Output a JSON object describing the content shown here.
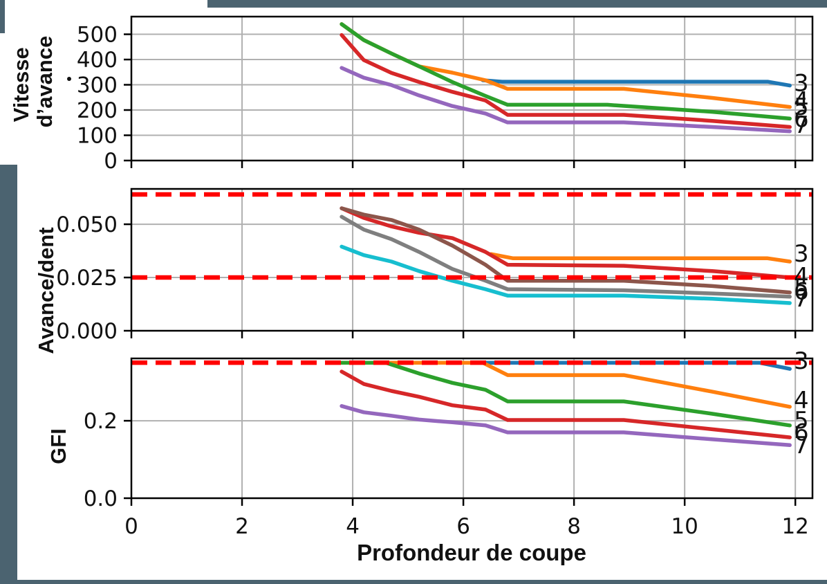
{
  "styles": {
    "frame_color": "#4b6370",
    "grid_color": "#b0b0b0",
    "dash_color": "#ff0000",
    "spine_color": "#000000"
  },
  "x_axis": {
    "label": "Profondeur de coupe",
    "ticks": [
      0,
      2,
      4,
      6,
      8,
      10,
      12
    ],
    "tick_labels": [
      "0",
      "2",
      "4",
      "6",
      "8",
      "10",
      "12"
    ],
    "xlim": [
      0,
      12.31
    ]
  },
  "chart_data": [
    {
      "type": "line",
      "id": "vitesse-davance",
      "title": "",
      "xlabel": "",
      "ylabel": "Vitesse d’avance",
      "ylabel_lines": [
        "Vitesse",
        "d’avance"
      ],
      "ylim": [
        0,
        570
      ],
      "yticks": [
        0,
        100,
        200,
        300,
        400,
        500
      ],
      "ytick_labels": [
        "0",
        "100",
        "200",
        "300",
        "400",
        "500"
      ],
      "xticks": [
        0,
        2,
        4,
        6,
        8,
        10,
        12
      ],
      "grid": true,
      "legend": "line-end labels = number of teeth",
      "dashed_limits": [],
      "series": [
        {
          "name": "3",
          "color": "#1f77b4",
          "points": [
            [
              6.35,
              318
            ],
            [
              6.7,
              312
            ],
            [
              11.5,
              312
            ],
            [
              11.9,
              297
            ]
          ]
        },
        {
          "name": "4",
          "color": "#ff7f0e",
          "points": [
            [
              3.8,
              540
            ],
            [
              4.2,
              477
            ],
            [
              4.7,
              424
            ],
            [
              5.2,
              373
            ],
            [
              5.8,
              348
            ],
            [
              6.4,
              318
            ],
            [
              6.8,
              284
            ],
            [
              8.9,
              284
            ],
            [
              10.5,
              248
            ],
            [
              11.9,
              212
            ]
          ]
        },
        {
          "name": "5",
          "color": "#2ca02c",
          "points": [
            [
              3.8,
              540
            ],
            [
              4.2,
              477
            ],
            [
              4.7,
              424
            ],
            [
              5.2,
              373
            ],
            [
              5.8,
              311
            ],
            [
              6.4,
              256
            ],
            [
              6.8,
              221
            ],
            [
              8.6,
              221
            ],
            [
              10.5,
              193
            ],
            [
              11.9,
              166
            ]
          ]
        },
        {
          "name": "6",
          "color": "#d62728",
          "points": [
            [
              3.8,
              497
            ],
            [
              4.2,
              398
            ],
            [
              4.7,
              347
            ],
            [
              5.2,
              311
            ],
            [
              5.8,
              272
            ],
            [
              6.4,
              238
            ],
            [
              6.8,
              181
            ],
            [
              8.9,
              181
            ],
            [
              10.5,
              157
            ],
            [
              11.9,
              133
            ]
          ]
        },
        {
          "name": "7",
          "color": "#9467bd",
          "points": [
            [
              3.8,
              367
            ],
            [
              4.2,
              328
            ],
            [
              4.7,
              299
            ],
            [
              5.2,
              258
            ],
            [
              5.8,
              216
            ],
            [
              6.4,
              186
            ],
            [
              6.8,
              151
            ],
            [
              8.9,
              151
            ],
            [
              10.5,
              133
            ],
            [
              11.9,
              116
            ]
          ]
        }
      ],
      "end_labels": [
        {
          "text": "3",
          "value": 308
        },
        {
          "text": "4",
          "value": 238
        },
        {
          "text": "5",
          "value": 214
        },
        {
          "text": "6",
          "value": 166
        },
        {
          "text": "7",
          "value": 142
        }
      ]
    },
    {
      "type": "line",
      "id": "avance-dent",
      "title": "",
      "xlabel": "",
      "ylabel": "Avance/dent",
      "ylim": [
        0,
        0.0666
      ],
      "yticks": [
        0,
        0.025,
        0.05
      ],
      "ytick_labels": [
        "0.000",
        "0.025",
        "0.050"
      ],
      "xticks": [
        0,
        2,
        4,
        6,
        8,
        10,
        12
      ],
      "grid": true,
      "dashed_limits": [
        0.064,
        0.025
      ],
      "series": [
        {
          "name": "3",
          "color": "#ff7f0e",
          "points": [
            [
              6.5,
              0.036
            ],
            [
              6.9,
              0.034
            ],
            [
              11.5,
              0.034
            ],
            [
              11.9,
              0.0325
            ]
          ]
        },
        {
          "name": "4",
          "color": "#d62728",
          "points": [
            [
              3.8,
              0.0575
            ],
            [
              4.2,
              0.053
            ],
            [
              4.7,
              0.049
            ],
            [
              5.2,
              0.046
            ],
            [
              5.8,
              0.0435
            ],
            [
              6.4,
              0.037
            ],
            [
              6.8,
              0.031
            ],
            [
              8.9,
              0.0305
            ],
            [
              10.5,
              0.028
            ],
            [
              11.9,
              0.025
            ]
          ]
        },
        {
          "name": "5",
          "color": "#8c564b",
          "points": [
            [
              3.8,
              0.0575
            ],
            [
              4.2,
              0.0545
            ],
            [
              4.7,
              0.052
            ],
            [
              5.2,
              0.0475
            ],
            [
              5.8,
              0.04
            ],
            [
              6.4,
              0.031
            ],
            [
              6.8,
              0.0235
            ],
            [
              8.9,
              0.0235
            ],
            [
              10.5,
              0.021
            ],
            [
              11.9,
              0.018
            ]
          ]
        },
        {
          "name": "6",
          "color": "#7f7f7f",
          "points": [
            [
              3.8,
              0.0535
            ],
            [
              4.2,
              0.0475
            ],
            [
              4.7,
              0.043
            ],
            [
              5.2,
              0.037
            ],
            [
              5.8,
              0.029
            ],
            [
              6.4,
              0.0235
            ],
            [
              6.8,
              0.0195
            ],
            [
              8.9,
              0.019
            ],
            [
              10.5,
              0.0175
            ],
            [
              11.9,
              0.016
            ]
          ]
        },
        {
          "name": "7",
          "color": "#17becf",
          "points": [
            [
              3.8,
              0.0395
            ],
            [
              4.2,
              0.0355
            ],
            [
              4.7,
              0.0325
            ],
            [
              5.2,
              0.028
            ],
            [
              5.8,
              0.0235
            ],
            [
              6.4,
              0.0195
            ],
            [
              6.8,
              0.0165
            ],
            [
              8.9,
              0.0165
            ],
            [
              10.5,
              0.015
            ],
            [
              11.9,
              0.013
            ]
          ]
        }
      ],
      "end_labels": [
        {
          "text": "3",
          "value": 0.0364
        },
        {
          "text": "4",
          "value": 0.0257
        },
        {
          "text": "5",
          "value": 0.0205
        },
        {
          "text": "6",
          "value": 0.0186
        },
        {
          "text": "7",
          "value": 0.0152
        }
      ]
    },
    {
      "type": "line",
      "id": "gfi",
      "title": "",
      "xlabel": "Profondeur de coupe",
      "ylabel": "GFI",
      "ylim": [
        0,
        0.361
      ],
      "yticks": [
        0,
        0.2
      ],
      "ytick_labels": [
        "0.0",
        "0.2"
      ],
      "xticks": [
        0,
        2,
        4,
        6,
        8,
        10,
        12
      ],
      "grid": true,
      "dashed_limits": [
        0.35
      ],
      "series": [
        {
          "name": "3",
          "color": "#1f77b4",
          "points": [
            [
              3.8,
              0.35
            ],
            [
              11.35,
              0.35
            ],
            [
              11.9,
              0.334
            ]
          ]
        },
        {
          "name": "4",
          "color": "#ff7f0e",
          "points": [
            [
              3.8,
              0.35
            ],
            [
              6.35,
              0.35
            ],
            [
              6.8,
              0.318
            ],
            [
              8.9,
              0.318
            ],
            [
              10.5,
              0.275
            ],
            [
              11.9,
              0.236
            ]
          ]
        },
        {
          "name": "5",
          "color": "#2ca02c",
          "points": [
            [
              3.8,
              0.35
            ],
            [
              4.6,
              0.35
            ],
            [
              5.2,
              0.322
            ],
            [
              5.8,
              0.298
            ],
            [
              6.4,
              0.28
            ],
            [
              6.8,
              0.25
            ],
            [
              8.9,
              0.25
            ],
            [
              10.5,
              0.218
            ],
            [
              11.9,
              0.188
            ]
          ]
        },
        {
          "name": "6",
          "color": "#d62728",
          "points": [
            [
              3.8,
              0.327
            ],
            [
              4.2,
              0.295
            ],
            [
              4.7,
              0.277
            ],
            [
              5.2,
              0.262
            ],
            [
              5.8,
              0.24
            ],
            [
              6.4,
              0.229
            ],
            [
              6.8,
              0.202
            ],
            [
              8.9,
              0.202
            ],
            [
              10.5,
              0.178
            ],
            [
              11.9,
              0.157
            ]
          ]
        },
        {
          "name": "7",
          "color": "#9467bd",
          "points": [
            [
              3.8,
              0.238
            ],
            [
              4.2,
              0.222
            ],
            [
              4.7,
              0.213
            ],
            [
              5.2,
              0.203
            ],
            [
              5.8,
              0.196
            ],
            [
              6.4,
              0.188
            ],
            [
              6.8,
              0.17
            ],
            [
              8.9,
              0.17
            ],
            [
              10.5,
              0.152
            ],
            [
              11.9,
              0.137
            ]
          ]
        }
      ],
      "end_labels": [
        {
          "text": "3",
          "value": 0.356
        },
        {
          "text": "4",
          "value": 0.254
        },
        {
          "text": "5",
          "value": 0.202
        },
        {
          "text": "6",
          "value": 0.171
        },
        {
          "text": "7",
          "value": 0.138
        }
      ]
    }
  ]
}
